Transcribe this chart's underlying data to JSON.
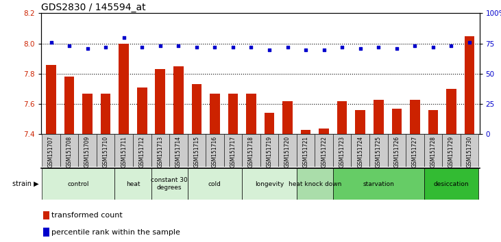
{
  "title": "GDS2830 / 145594_at",
  "samples": [
    "GSM151707",
    "GSM151708",
    "GSM151709",
    "GSM151710",
    "GSM151711",
    "GSM151712",
    "GSM151713",
    "GSM151714",
    "GSM151715",
    "GSM151716",
    "GSM151717",
    "GSM151718",
    "GSM151719",
    "GSM151720",
    "GSM151721",
    "GSM151722",
    "GSM151723",
    "GSM151724",
    "GSM151725",
    "GSM151726",
    "GSM151727",
    "GSM151728",
    "GSM151729",
    "GSM151730"
  ],
  "bar_values": [
    7.86,
    7.78,
    7.67,
    7.67,
    8.0,
    7.71,
    7.83,
    7.85,
    7.73,
    7.67,
    7.67,
    7.67,
    7.54,
    7.62,
    7.43,
    7.44,
    7.62,
    7.56,
    7.63,
    7.57,
    7.63,
    7.56,
    7.7,
    8.05
  ],
  "percentile_values": [
    76,
    73,
    71,
    72,
    80,
    72,
    73,
    73,
    72,
    72,
    72,
    72,
    70,
    72,
    70,
    70,
    72,
    71,
    72,
    71,
    73,
    72,
    73,
    76
  ],
  "ylim_left": [
    7.4,
    8.2
  ],
  "ylim_right": [
    0,
    100
  ],
  "yticks_left": [
    7.4,
    7.6,
    7.8,
    8.0,
    8.2
  ],
  "yticks_right": [
    0,
    25,
    50,
    75,
    100
  ],
  "bar_color": "#cc2200",
  "dot_color": "#0000cc",
  "groups": [
    {
      "label": "control",
      "start": 0,
      "end": 3
    },
    {
      "label": "heat",
      "start": 4,
      "end": 5
    },
    {
      "label": "constant 30\ndegrees",
      "start": 6,
      "end": 7
    },
    {
      "label": "cold",
      "start": 8,
      "end": 10
    },
    {
      "label": "longevity",
      "start": 11,
      "end": 13
    },
    {
      "label": "heat knock down",
      "start": 14,
      "end": 15
    },
    {
      "label": "starvation",
      "start": 16,
      "end": 20
    },
    {
      "label": "desiccation",
      "start": 21,
      "end": 23
    }
  ],
  "group_colors": [
    "#d6f0d6",
    "#d6f0d6",
    "#d6f0d6",
    "#d6f0d6",
    "#d6f0d6",
    "#aaddaa",
    "#66cc66",
    "#33bb33"
  ],
  "tick_bg_color": "#cccccc",
  "legend_labels": [
    "transformed count",
    "percentile rank within the sample"
  ],
  "legend_colors": [
    "#cc2200",
    "#0000cc"
  ],
  "dotted_gridlines": [
    7.6,
    7.8,
    8.0
  ],
  "title_fontsize": 10,
  "tick_fontsize": 7.5,
  "label_fontsize": 5.5,
  "group_fontsize": 6.5,
  "legend_fontsize": 8
}
